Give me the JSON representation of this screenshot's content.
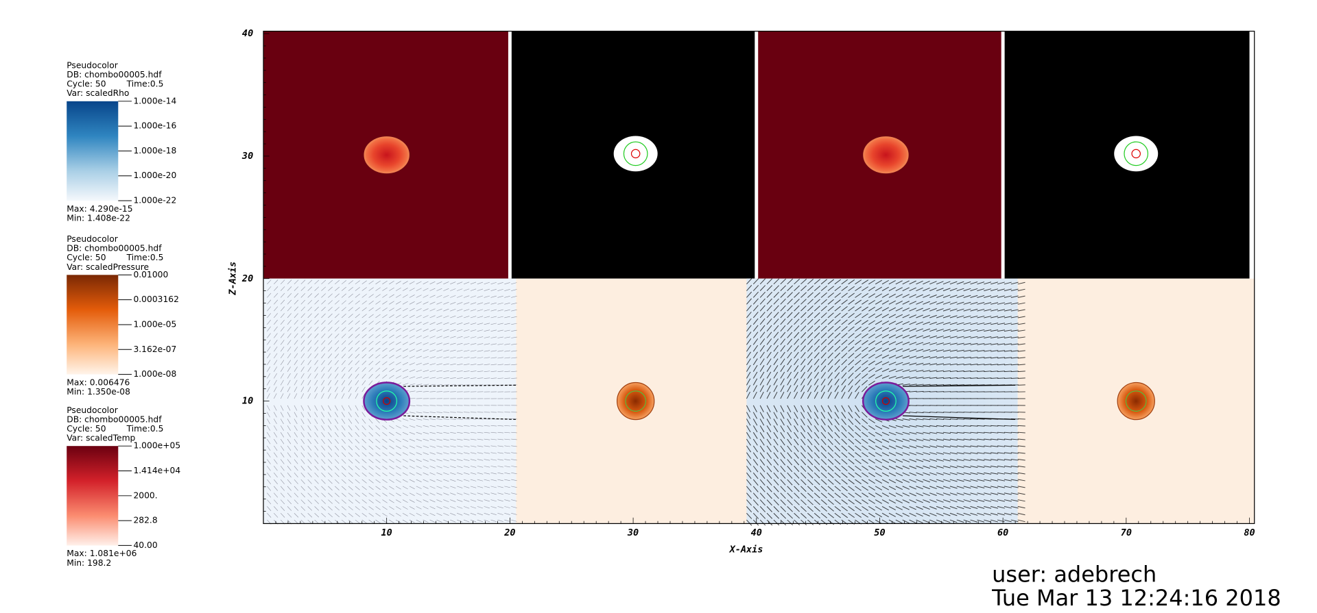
{
  "legends": [
    {
      "plot": "Pseudocolor",
      "db": "DB: chombo00005.hdf",
      "cycle": "Cycle: 50",
      "time": "Time:0.5",
      "var": "Var: scaledRho",
      "ticks": [
        "1.000e-14",
        "1.000e-16",
        "1.000e-18",
        "1.000e-20",
        "1.000e-22"
      ],
      "max": "Max:  4.290e-15",
      "min": "Min:  1.408e-22"
    },
    {
      "plot": "Pseudocolor",
      "db": "DB: chombo00005.hdf",
      "cycle": "Cycle: 50",
      "time": "Time:0.5",
      "var": "Var: scaledPressure",
      "ticks": [
        "0.01000",
        "0.0003162",
        "1.000e-05",
        "3.162e-07",
        "1.000e-08"
      ],
      "max": "Max:  0.006476",
      "min": "Min:  1.350e-08"
    },
    {
      "plot": "Pseudocolor",
      "db": "DB: chombo00005.hdf",
      "cycle": "Cycle: 50",
      "time": "Time:0.5",
      "var": "Var: scaledTemp",
      "ticks": [
        "1.000e+05",
        "1.414e+04",
        "2000.",
        "282.8",
        "40.00"
      ],
      "max": "Max:  1.081e+06",
      "min": "Min:  198.2"
    }
  ],
  "axes": {
    "x_title": "X-Axis",
    "y_title": "Z-Axis",
    "x_ticks": [
      "10",
      "20",
      "30",
      "40",
      "50",
      "60",
      "70",
      "80"
    ],
    "y_ticks": [
      "10",
      "20",
      "30",
      "40"
    ]
  },
  "footer": {
    "user": "user: adebrech",
    "date": "Tue Mar 13 12:24:16 2018"
  }
}
